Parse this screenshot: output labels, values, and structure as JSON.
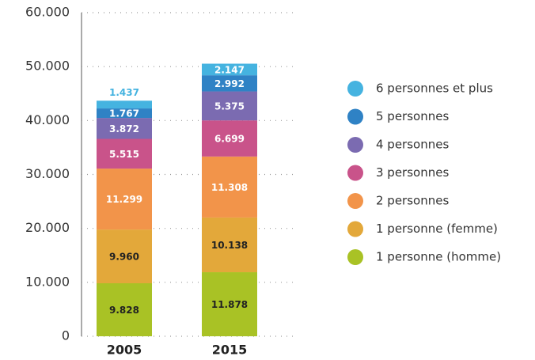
{
  "chart_data": {
    "type": "stacked_bar",
    "categories": [
      "2005",
      "2015"
    ],
    "series": [
      {
        "name": "1 personne (homme)",
        "color": "#a9c225",
        "values": [
          9828,
          11878
        ],
        "value_labels": [
          "9.828",
          "11.878"
        ]
      },
      {
        "name": "1 personne (femme)",
        "color": "#e3a83a",
        "values": [
          9960,
          10138
        ],
        "value_labels": [
          "9.960",
          "10.138"
        ]
      },
      {
        "name": "2 personnes",
        "color": "#f2944a",
        "values": [
          11299,
          11308
        ],
        "value_labels": [
          "11.299",
          "11.308"
        ]
      },
      {
        "name": "3 personnes",
        "color": "#c9538a",
        "values": [
          5515,
          6699
        ],
        "value_labels": [
          "5.515",
          "6.699"
        ]
      },
      {
        "name": "4 personnes",
        "color": "#7b6bb1",
        "values": [
          3872,
          5375
        ],
        "value_labels": [
          "3.872",
          "5.375"
        ]
      },
      {
        "name": "5 personnes",
        "color": "#2f82c5",
        "values": [
          1767,
          2992
        ],
        "value_labels": [
          "1.767",
          "2.992"
        ]
      },
      {
        "name": "6 personnes et plus",
        "color": "#45b3e0",
        "values": [
          1437,
          2147
        ],
        "value_labels": [
          "1.437",
          "2.147"
        ]
      }
    ],
    "ylim": [
      0,
      60000
    ],
    "yticks": [
      0,
      {
        "value": 10000,
        "label": "10.000"
      },
      {
        "value": 20000,
        "label": "20.000"
      },
      {
        "value": 30000,
        "label": "30.000"
      },
      {
        "value": 40000,
        "label": "40.000"
      },
      {
        "value": 50000,
        "label": "50.000"
      },
      {
        "value": 60000,
        "label": "60.000"
      }
    ],
    "grid": true,
    "legend": "right"
  }
}
